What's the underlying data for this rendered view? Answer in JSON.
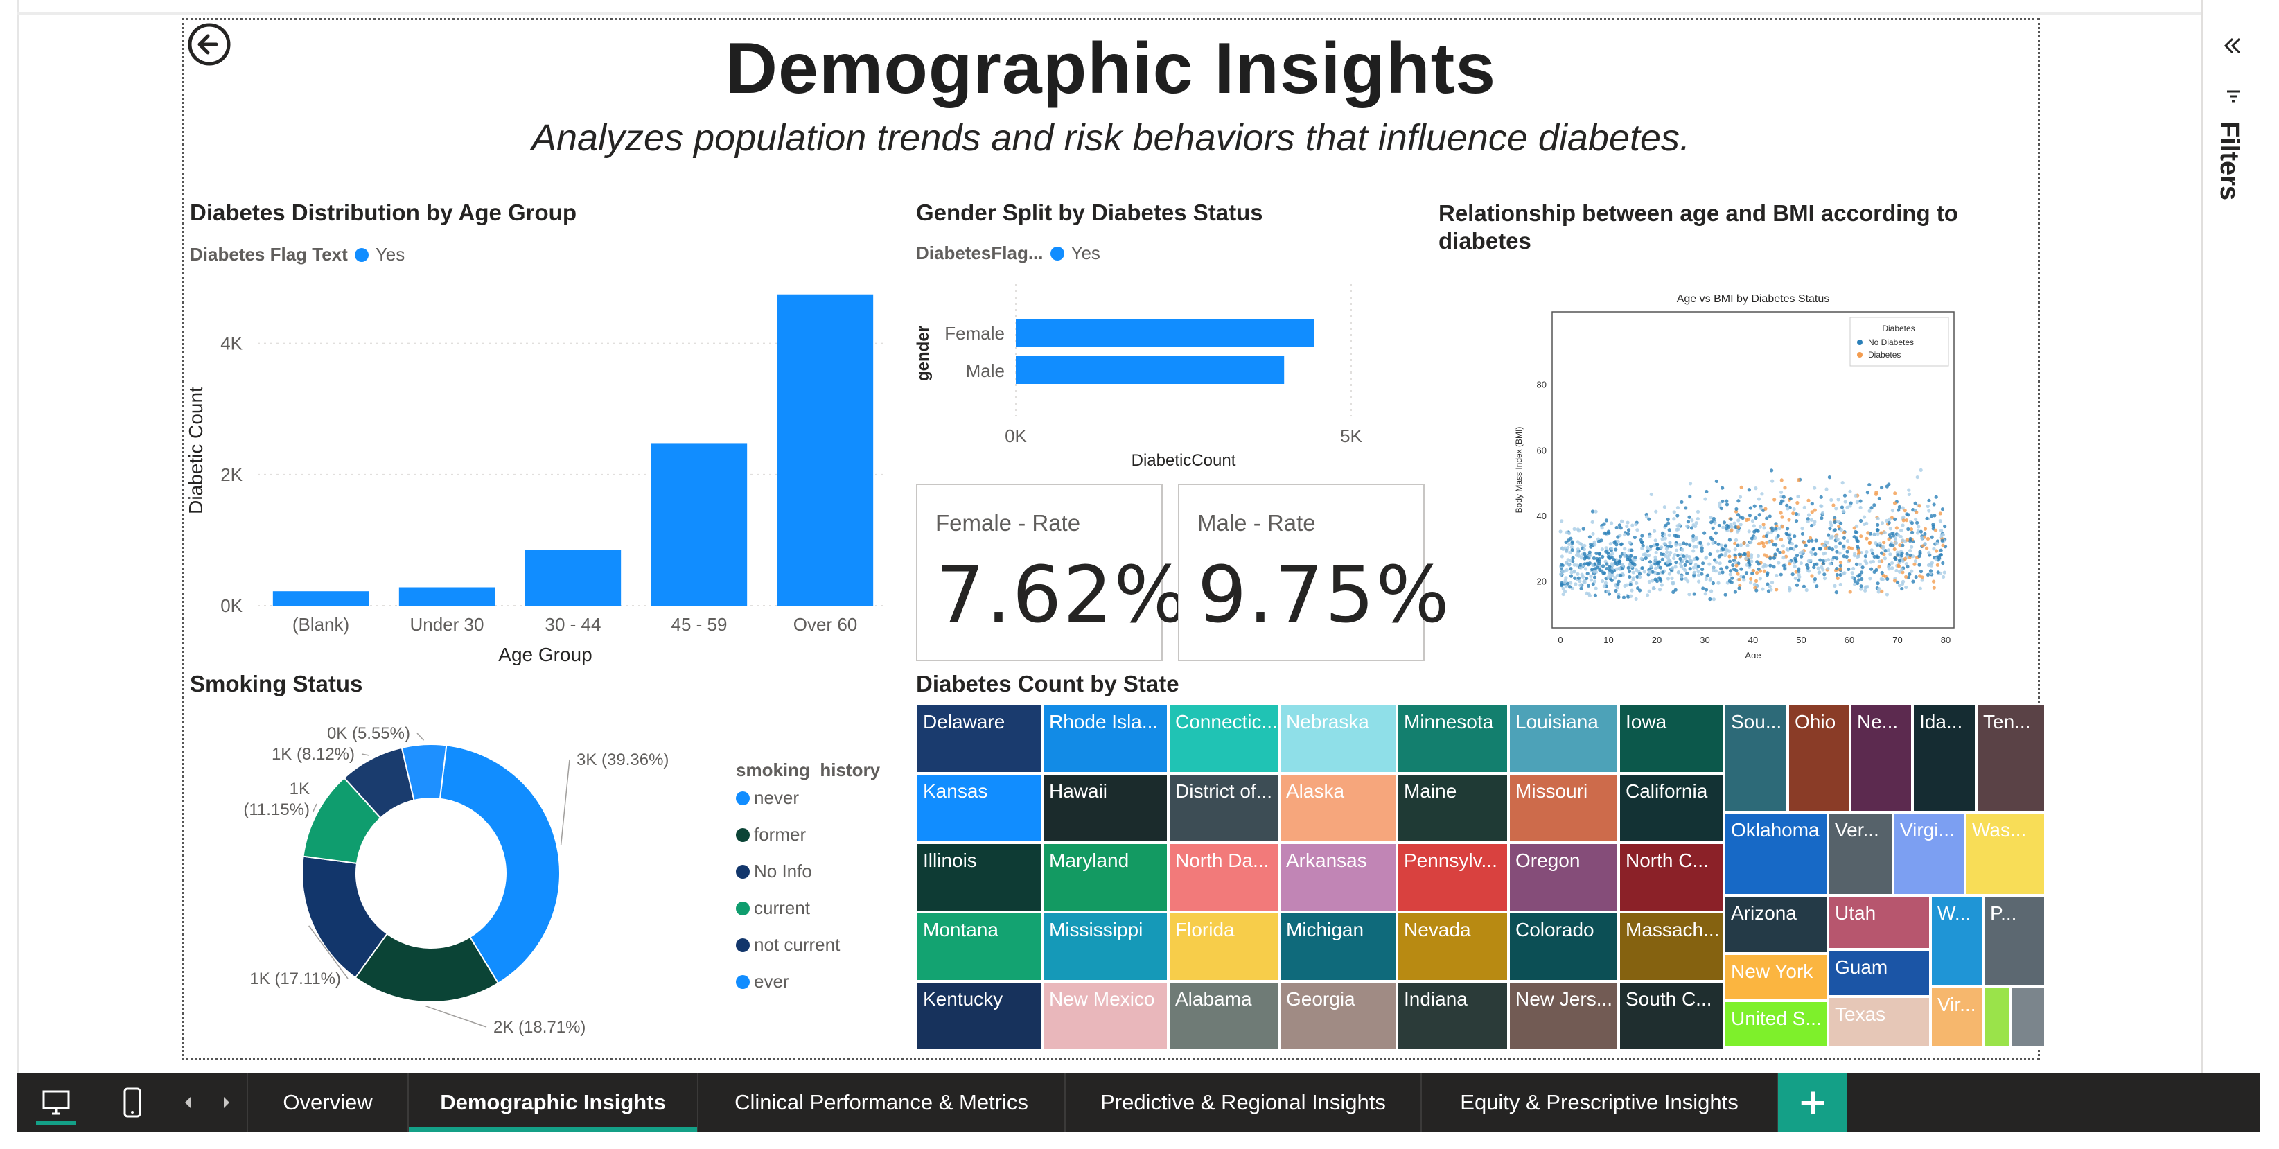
{
  "page": {
    "title": "Demographic Insights",
    "subtitle": "Analyzes population trends and risk behaviors that influence diabetes."
  },
  "age_chart": {
    "title": "Diabetes Distribution by Age Group",
    "legend_label": "Diabetes Flag Text",
    "legend_item": "Yes",
    "series_color": "#118dff"
  },
  "gender_chart": {
    "title": "Gender Split by Diabetes Status",
    "legend_label": "DiabetesFlag...",
    "legend_item": "Yes"
  },
  "scatter_visual": {
    "title": "Relationship between age and BMI according to diabetes",
    "image_title": "Age vs BMI by Diabetes Status",
    "x_label": "Age",
    "y_label": "Body Mass Index (BMI)",
    "legend_title": "Diabetes",
    "legend_items": [
      "No Diabetes",
      "Diabetes"
    ],
    "x_ticks": [
      "0",
      "10",
      "20",
      "30",
      "40",
      "50",
      "60",
      "70",
      "80"
    ],
    "y_ticks": [
      "20",
      "40",
      "60",
      "80"
    ]
  },
  "cards": {
    "female": {
      "label": "Female - Rate",
      "value": "7.62%"
    },
    "male": {
      "label": "Male - Rate",
      "value": "9.75%"
    }
  },
  "smoking_chart": {
    "title": "Smoking Status",
    "legend_title": "smoking_history"
  },
  "treemap": {
    "title": "Diabetes Count by State"
  },
  "side_panel": {
    "filters_label": "Filters"
  },
  "tabs": [
    {
      "label": "Overview",
      "active": false
    },
    {
      "label": "Demographic Insights",
      "active": true
    },
    {
      "label": "Clinical Performance & Metrics",
      "active": false
    },
    {
      "label": "Predictive & Regional Insights",
      "active": false
    },
    {
      "label": "Equity & Prescriptive Insights",
      "active": false
    }
  ],
  "add_tab_label": "+",
  "chart_data": [
    {
      "type": "bar",
      "id": "age",
      "title": "Diabetes Distribution by Age Group",
      "xlabel": "Age Group",
      "ylabel": "Diabetic Count",
      "categories": [
        "(Blank)",
        "Under 30",
        "30 - 44",
        "45 - 59",
        "Over 60"
      ],
      "values": [
        220,
        280,
        850,
        2480,
        4750
      ],
      "y_ticks": [
        {
          "v": 0,
          "label": "0K"
        },
        {
          "v": 2000,
          "label": "2K"
        },
        {
          "v": 4000,
          "label": "4K"
        }
      ],
      "ylim": [
        0,
        4800
      ]
    },
    {
      "type": "bar",
      "id": "gender",
      "orientation": "horizontal",
      "title": "Gender Split by Diabetes Status",
      "xlabel": "DiabeticCount",
      "ylabel": "gender",
      "categories": [
        "Female",
        "Male"
      ],
      "values": [
        4450,
        4000
      ],
      "x_ticks": [
        {
          "v": 0,
          "label": "0K"
        },
        {
          "v": 5000,
          "label": "5K"
        }
      ],
      "xlim": [
        0,
        5000
      ]
    },
    {
      "type": "pie",
      "id": "smoking",
      "donut": true,
      "title": "Smoking Status",
      "slices": [
        {
          "name": "never",
          "value": 39.36,
          "label": "3K (39.36%)",
          "color": "#118dff"
        },
        {
          "name": "former",
          "value": 18.71,
          "label": "2K (18.71%)",
          "color": "#0b4436"
        },
        {
          "name": "No Info",
          "value": 17.11,
          "label": "1K (17.11%)",
          "color": "#12366b"
        },
        {
          "name": "current",
          "value": 11.15,
          "label": "1K (11.15%)",
          "color": "#0f9d6e"
        },
        {
          "name": "not current",
          "value": 8.12,
          "label": "1K (8.12%)",
          "color": "#1a3c6e"
        },
        {
          "name": "ever",
          "value": 5.55,
          "label": "0K (5.55%)",
          "color": "#1e90ff"
        }
      ]
    },
    {
      "type": "treemap",
      "id": "states",
      "title": "Diabetes Count by State",
      "items": [
        {
          "name": "Delaware",
          "color": "#1a3b6e"
        },
        {
          "name": "Kansas",
          "color": "#118dff"
        },
        {
          "name": "Illinois",
          "color": "#0e3b34"
        },
        {
          "name": "Montana",
          "color": "#13a371"
        },
        {
          "name": "Kentucky",
          "color": "#17325c"
        },
        {
          "name": "Rhode Isla...",
          "color": "#128be6"
        },
        {
          "name": "Hawaii",
          "color": "#1b2b2c"
        },
        {
          "name": "Maryland",
          "color": "#139a62"
        },
        {
          "name": "Mississippi",
          "color": "#1599b8"
        },
        {
          "name": "New Mexico",
          "color": "#e9b7bb"
        },
        {
          "name": "Connectic...",
          "color": "#20c3b4"
        },
        {
          "name": "District of...",
          "color": "#3d4d55"
        },
        {
          "name": "North Da...",
          "color": "#f27a7a"
        },
        {
          "name": "Florida",
          "color": "#f7cd4a"
        },
        {
          "name": "Alabama",
          "color": "#6f7b76"
        },
        {
          "name": "Nebraska",
          "color": "#8fdfe8"
        },
        {
          "name": "Alaska",
          "color": "#f6a67c"
        },
        {
          "name": "Arkansas",
          "color": "#c185b5"
        },
        {
          "name": "Michigan",
          "color": "#0f6a7b"
        },
        {
          "name": "Georgia",
          "color": "#a08b84"
        },
        {
          "name": "Minnesota",
          "color": "#137f6e"
        },
        {
          "name": "Maine",
          "color": "#1f3a35"
        },
        {
          "name": "Pennsylv...",
          "color": "#d9413f"
        },
        {
          "name": "Nevada",
          "color": "#b88a12"
        },
        {
          "name": "Indiana",
          "color": "#2b3b39"
        },
        {
          "name": "Louisiana",
          "color": "#4da2b8"
        },
        {
          "name": "Missouri",
          "color": "#cd6b4b"
        },
        {
          "name": "Oregon",
          "color": "#854d79"
        },
        {
          "name": "Colorado",
          "color": "#0c4f55"
        },
        {
          "name": "New Jers...",
          "color": "#725b54"
        },
        {
          "name": "Iowa",
          "color": "#0c584b"
        },
        {
          "name": "California",
          "color": "#133234"
        },
        {
          "name": "North C...",
          "color": "#8b2128"
        },
        {
          "name": "Massach...",
          "color": "#856210"
        },
        {
          "name": "South C...",
          "color": "#1f2e2f"
        },
        {
          "name": "Sou...",
          "color": "#2d6a78"
        },
        {
          "name": "Ohio",
          "color": "#8a3c27"
        },
        {
          "name": "Ne...",
          "color": "#5c2a4f"
        },
        {
          "name": "Ida...",
          "color": "#152c32"
        },
        {
          "name": "Ten...",
          "color": "#5a4246"
        },
        {
          "name": "Oklahoma",
          "color": "#1769c6"
        },
        {
          "name": "Ver...",
          "color": "#56626a"
        },
        {
          "name": "Virgi...",
          "color": "#7c9ff2"
        },
        {
          "name": "Was...",
          "color": "#f8dd57"
        },
        {
          "name": "Arizona",
          "color": "#243a47"
        },
        {
          "name": "Utah",
          "color": "#b7566e"
        },
        {
          "name": "W...",
          "color": "#1f95d6"
        },
        {
          "name": "P...",
          "color": "#5c6871"
        },
        {
          "name": "New York",
          "color": "#fbb540"
        },
        {
          "name": "Guam",
          "color": "#1b55a6"
        },
        {
          "name": "United S...",
          "color": "#7ef02b"
        },
        {
          "name": "Texas",
          "color": "#e6c7b7"
        },
        {
          "name": "Vir...",
          "color": "#f6b76d"
        },
        {
          "name": "",
          "color": "#9ae34a"
        },
        {
          "name": "",
          "color": "#7b858c"
        }
      ]
    }
  ]
}
